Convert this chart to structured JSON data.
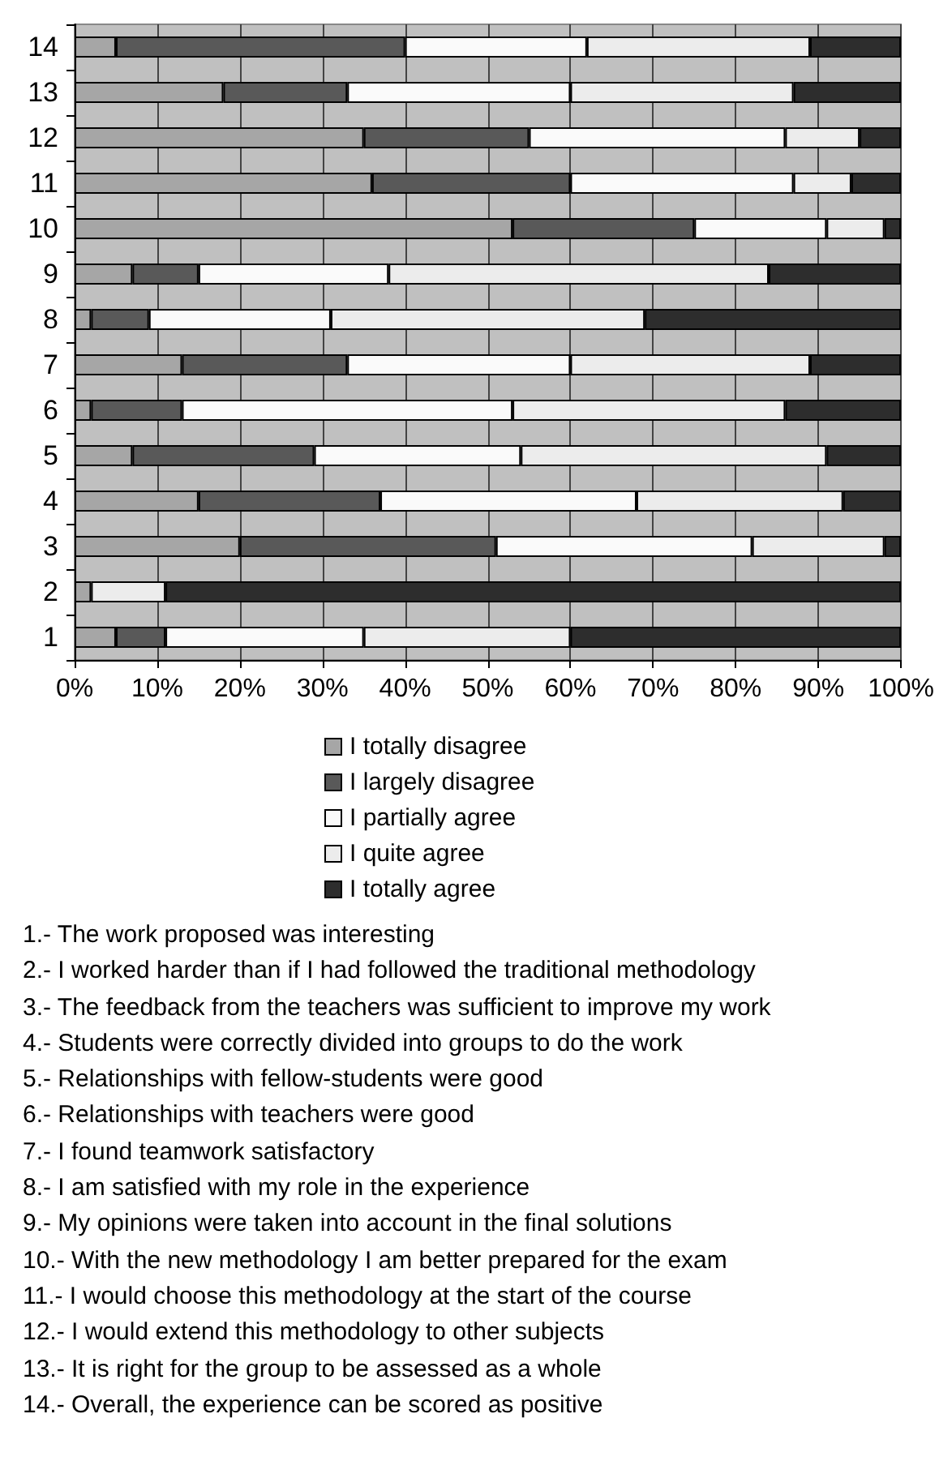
{
  "chart_data": {
    "type": "bar",
    "orientation": "horizontal",
    "stacked": true,
    "categories": [
      "14",
      "13",
      "12",
      "11",
      "10",
      "9",
      "8",
      "7",
      "6",
      "5",
      "4",
      "3",
      "2",
      "1"
    ],
    "series": [
      {
        "name": "I totally disagree",
        "color": "#a6a6a6",
        "values": [
          5,
          18,
          35,
          36,
          53,
          7,
          2,
          13,
          2,
          7,
          15,
          20,
          2,
          5
        ]
      },
      {
        "name": "I largely disagree",
        "color": "#595959",
        "values": [
          35,
          15,
          20,
          24,
          22,
          8,
          7,
          20,
          11,
          22,
          22,
          31,
          0,
          6
        ]
      },
      {
        "name": "I partially agree",
        "color": "#fafafa",
        "values": [
          22,
          27,
          31,
          27,
          16,
          23,
          22,
          27,
          40,
          25,
          31,
          31,
          0,
          24
        ]
      },
      {
        "name": "I quite agree",
        "color": "#ececec",
        "values": [
          27,
          27,
          9,
          7,
          7,
          46,
          38,
          29,
          33,
          37,
          25,
          16,
          9,
          25
        ]
      },
      {
        "name": "I totally agree",
        "color": "#2d2d2d",
        "values": [
          11,
          13,
          5,
          6,
          2,
          16,
          31,
          11,
          14,
          9,
          7,
          2,
          89,
          40
        ]
      }
    ],
    "xlim": [
      0,
      100
    ],
    "xticks": [
      {
        "value": 0,
        "label": "0%"
      },
      {
        "value": 10,
        "label": "10%"
      },
      {
        "value": 20,
        "label": "20%"
      },
      {
        "value": 30,
        "label": "30%"
      },
      {
        "value": 40,
        "label": "40%"
      },
      {
        "value": 50,
        "label": "50%"
      },
      {
        "value": 60,
        "label": "60%"
      },
      {
        "value": 70,
        "label": "70%"
      },
      {
        "value": 80,
        "label": "80%"
      },
      {
        "value": 90,
        "label": "90%"
      },
      {
        "value": 100,
        "label": "100%"
      }
    ],
    "grid": "x",
    "legend": "bottom",
    "annotations": [
      "1.- The work proposed was interesting",
      "2.- I worked harder than if I had followed the traditional methodology",
      "3.- The feedback from the teachers was sufficient to improve my work",
      "4.- Students were correctly divided into groups to do the work",
      "5.- Relationships with fellow-students were good",
      "6.- Relationships with teachers were good",
      "7.- I found teamwork satisfactory",
      "8.- I am satisfied with my role in the experience",
      "9.- My opinions were taken into account in the final solutions",
      "10.- With the new methodology I am better prepared for the exam",
      "11.- I would choose this methodology at the start of the course",
      "12.- I would extend this methodology to other subjects",
      "13.- It is right for the group to be assessed as a whole",
      "14.- Overall, the experience can be scored as positive"
    ]
  }
}
